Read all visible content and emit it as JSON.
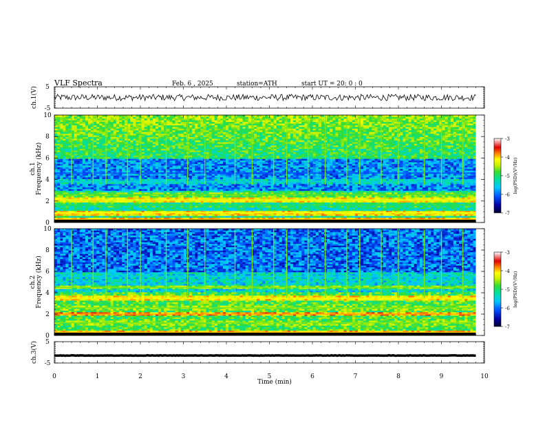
{
  "header": {
    "title": "VLF Spectra",
    "date": "Feb. 6 , 2025",
    "station": "station=ATH",
    "start": "start UT = 20: 0 : 0"
  },
  "colors": {
    "axis": "#000000",
    "trace": "#000000",
    "colormap": [
      "#000033",
      "#0000a0",
      "#0050ff",
      "#00c8ff",
      "#00e0a0",
      "#33dd33",
      "#c8f000",
      "#ffff00",
      "#ff8000",
      "#e00000",
      "#ffffff"
    ]
  },
  "chart_data": [
    {
      "id": "ch1-waveform",
      "type": "line",
      "ylabel": "ch.1(V)",
      "ylim": [
        -5,
        5
      ],
      "y_ticks": [
        "5",
        "-5"
      ],
      "xlim": [
        0,
        10
      ],
      "baseline_v": 0,
      "noise_amplitude_v": 1.5,
      "x_end_min": 9.8
    },
    {
      "id": "ch1-spectrogram",
      "type": "heatmap",
      "ylabel": "ch.1",
      "ylabel2": "Frequency (kHz)",
      "ylim": [
        0,
        10
      ],
      "y_ticks": [
        "0",
        "2",
        "4",
        "6",
        "8",
        "10"
      ],
      "xlim": [
        0,
        10
      ],
      "x_end_min": 9.8,
      "colorbar": {
        "label": "log(PSD)(V²/Hz)",
        "range": [
          -7,
          -3
        ],
        "ticks": [
          "-3",
          "-4",
          "-5",
          "-6",
          "-7"
        ]
      },
      "bands": [
        {
          "freq_khz": 0.3,
          "log_psd": -4.0
        },
        {
          "freq_khz": 0.9,
          "log_psd": -4.2
        },
        {
          "freq_khz": 1.6,
          "log_psd": -5.2
        },
        {
          "freq_khz": 2.1,
          "log_psd": -4.3
        },
        {
          "freq_khz": 2.6,
          "log_psd": -4.9
        },
        {
          "freq_khz": 3.8,
          "log_psd": -5.6
        },
        {
          "freq_khz": 4.6,
          "log_psd": -6.2
        }
      ],
      "spikes_at_min": [
        0.4,
        0.9,
        1.2,
        1.7,
        2.0,
        2.6,
        3.1,
        3.5,
        4.2,
        4.6,
        5.1,
        5.4,
        5.9,
        6.3,
        6.8,
        7.1,
        7.6,
        8.0,
        8.6,
        9.0,
        9.5
      ]
    },
    {
      "id": "ch2-spectrogram",
      "type": "heatmap",
      "ylabel": "ch.2",
      "ylabel2": "Frequency (kHz)",
      "ylim": [
        0,
        10
      ],
      "y_ticks": [
        "0",
        "2",
        "4",
        "6",
        "8",
        "10"
      ],
      "xlim": [
        0,
        10
      ],
      "x_end_min": 9.8,
      "colorbar": {
        "label": "log(PSD)(V²/Hz)",
        "range": [
          -7,
          -3
        ],
        "ticks": [
          "-3",
          "-4",
          "-5",
          "-6",
          "-7"
        ]
      },
      "bands": [
        {
          "freq_khz": 0.3,
          "log_psd": -4.0
        },
        {
          "freq_khz": 1.2,
          "log_psd": -4.8
        },
        {
          "freq_khz": 2.0,
          "log_psd": -3.9
        },
        {
          "freq_khz": 2.6,
          "log_psd": -4.8
        },
        {
          "freq_khz": 3.5,
          "log_psd": -4.2
        },
        {
          "freq_khz": 4.5,
          "log_psd": -4.8
        },
        {
          "freq_khz": 5.5,
          "log_psd": -5.7
        }
      ],
      "spikes_at_min": [
        0.4,
        0.9,
        1.2,
        1.7,
        2.0,
        2.6,
        3.1,
        3.5,
        4.2,
        4.6,
        5.1,
        5.4,
        5.9,
        6.3,
        6.8,
        7.1,
        7.6,
        8.0,
        8.6,
        9.0,
        9.5
      ]
    },
    {
      "id": "ch3-waveform",
      "type": "line",
      "ylabel": "ch.3(V)",
      "ylim": [
        -5,
        5
      ],
      "y_ticks": [
        "5",
        "-5"
      ],
      "xlim": [
        0,
        10
      ],
      "baseline_v": -1.5,
      "noise_amplitude_v": 0.1,
      "x_end_min": 9.8
    }
  ],
  "x_axis": {
    "label": "Time (min)",
    "ticks": [
      "0",
      "1",
      "2",
      "3",
      "4",
      "5",
      "6",
      "7",
      "8",
      "9",
      "10"
    ]
  }
}
